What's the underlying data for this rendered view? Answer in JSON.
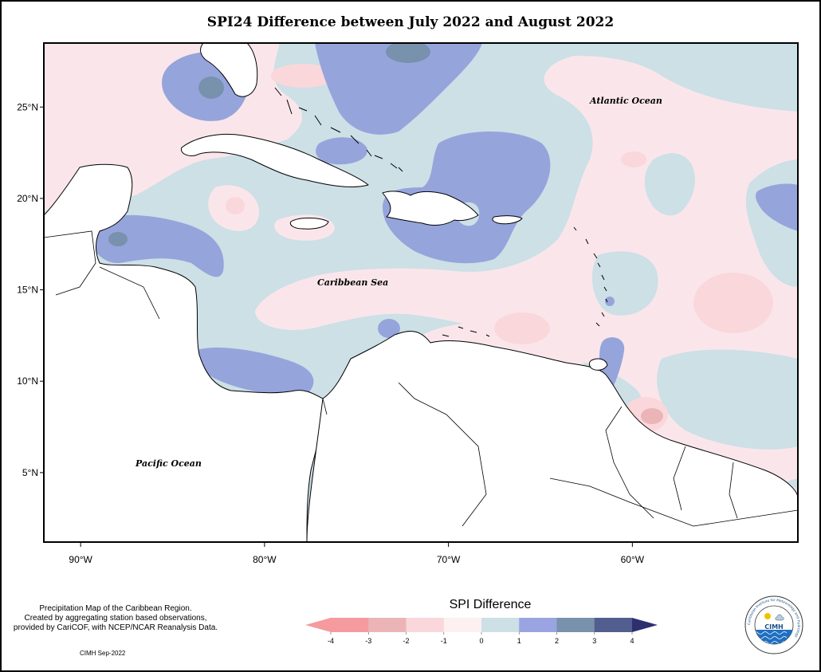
{
  "title": "SPI24 Difference between July 2022 and August 2022",
  "map": {
    "lon_range": [
      -92,
      -51
    ],
    "lat_range": [
      1.2,
      28.5
    ],
    "lat_ticks": [
      "25°N",
      "20°N",
      "15°N",
      "10°N",
      "5°N"
    ],
    "lon_ticks": [
      "90°W",
      "80°W",
      "70°W",
      "60°W"
    ],
    "region_labels": [
      "Atlantic Ocean",
      "Caribbean Sea",
      "Pacific Ocean"
    ]
  },
  "description": [
    "Precipitation Map of the Caribbean Region.",
    "Created by aggregating station based observations,",
    "provided by CariCOF, with NCEP/NCAR Reanalysis Data."
  ],
  "credit": "CIMH Sep-2022",
  "legend": {
    "title": "SPI Difference",
    "ticks": [
      "-4",
      "-3",
      "-2",
      "-1",
      "0",
      "1",
      "2",
      "3",
      "4"
    ],
    "colors": [
      "#f59a9e",
      "#ebb5b7",
      "#fad7db",
      "#fdf0f0",
      "#cce0e6",
      "#9aa4e0",
      "#7891ad",
      "#525e8d",
      "#2d2f70"
    ]
  },
  "logo": {
    "text": "CIMH",
    "ring_text": "Caribbean Institute for Meteorology and Hydrology"
  },
  "colors": {
    "land": "#ffffff",
    "coast": "#000000"
  }
}
